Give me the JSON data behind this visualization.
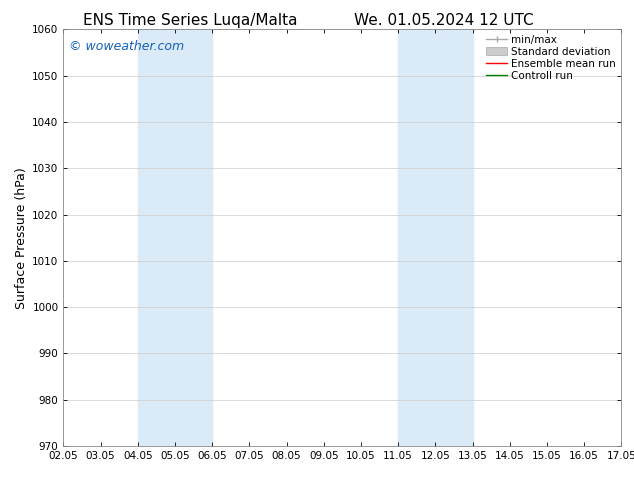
{
  "title_left": "ENS Time Series Luqa/Malta",
  "title_right": "We. 01.05.2024 12 UTC",
  "ylabel": "Surface Pressure (hPa)",
  "ylim": [
    970,
    1060
  ],
  "yticks": [
    970,
    980,
    990,
    1000,
    1010,
    1020,
    1030,
    1040,
    1050,
    1060
  ],
  "xlim_start": 0,
  "xlim_end": 15,
  "xtick_labels": [
    "02.05",
    "03.05",
    "04.05",
    "05.05",
    "06.05",
    "07.05",
    "08.05",
    "09.05",
    "10.05",
    "11.05",
    "12.05",
    "13.05",
    "14.05",
    "15.05",
    "16.05",
    "17.05"
  ],
  "xtick_positions": [
    0,
    1,
    2,
    3,
    4,
    5,
    6,
    7,
    8,
    9,
    10,
    11,
    12,
    13,
    14,
    15
  ],
  "shaded_bands": [
    {
      "x_start": 2,
      "x_end": 4,
      "color": "#daeaf7"
    },
    {
      "x_start": 9,
      "x_end": 11,
      "color": "#daeaf7"
    }
  ],
  "background_color": "#ffffff",
  "watermark_text": "© woweather.com",
  "watermark_color": "#1560bd",
  "legend_entries": [
    {
      "label": "min/max",
      "color": "#aaaaaa",
      "lw": 1.0,
      "style": "minmax"
    },
    {
      "label": "Standard deviation",
      "color": "#cccccc",
      "lw": 5,
      "style": "band"
    },
    {
      "label": "Ensemble mean run",
      "color": "#ff0000",
      "lw": 1.0,
      "style": "line"
    },
    {
      "label": "Controll run",
      "color": "#008000",
      "lw": 1.0,
      "style": "line"
    }
  ],
  "title_fontsize": 11,
  "ylabel_fontsize": 9,
  "tick_fontsize": 7.5,
  "watermark_fontsize": 9,
  "legend_fontsize": 7.5
}
